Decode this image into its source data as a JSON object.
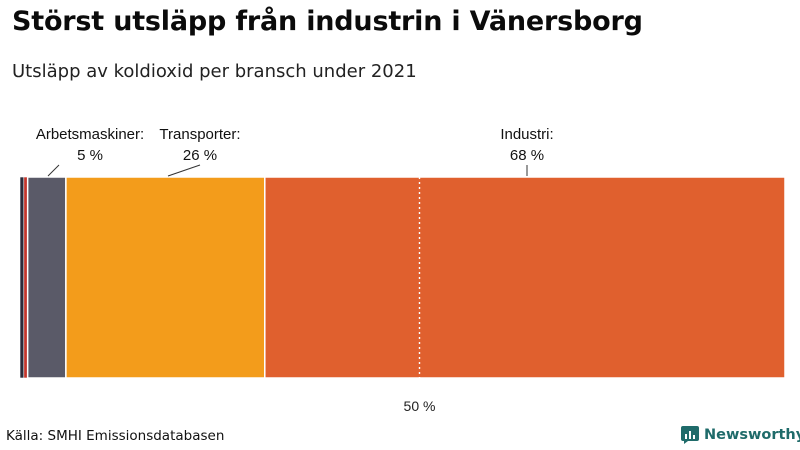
{
  "title": "Störst utsläpp från industrin i Vänersborg",
  "subtitle": "Utsläpp av koldioxid per bransch under 2021",
  "source": "Källa: SMHI Emissionsdatabasen",
  "brand": "Newsworthy",
  "colors": {
    "brand": "#1f6b6a"
  },
  "chart_data": {
    "type": "bar",
    "orientation": "stacked-horizontal",
    "categories": [
      "",
      "",
      "Arbetsmaskiner",
      "Transporter",
      "Industri"
    ],
    "values": [
      0.5,
      0.5,
      5,
      26,
      68
    ],
    "colors": [
      "#2b2b3a",
      "#c4362c",
      "#5a5a68",
      "#f39c1b",
      "#e0602e"
    ],
    "labels": [
      {
        "name": "Arbetsmaskiner:",
        "value": "5 %"
      },
      {
        "name": "Transporter:",
        "value": "26 %"
      },
      {
        "name": "Industri:",
        "value": "68 %"
      }
    ],
    "reference_line": {
      "value": 50,
      "label": "50 %"
    },
    "xlim": [
      0,
      100
    ]
  }
}
